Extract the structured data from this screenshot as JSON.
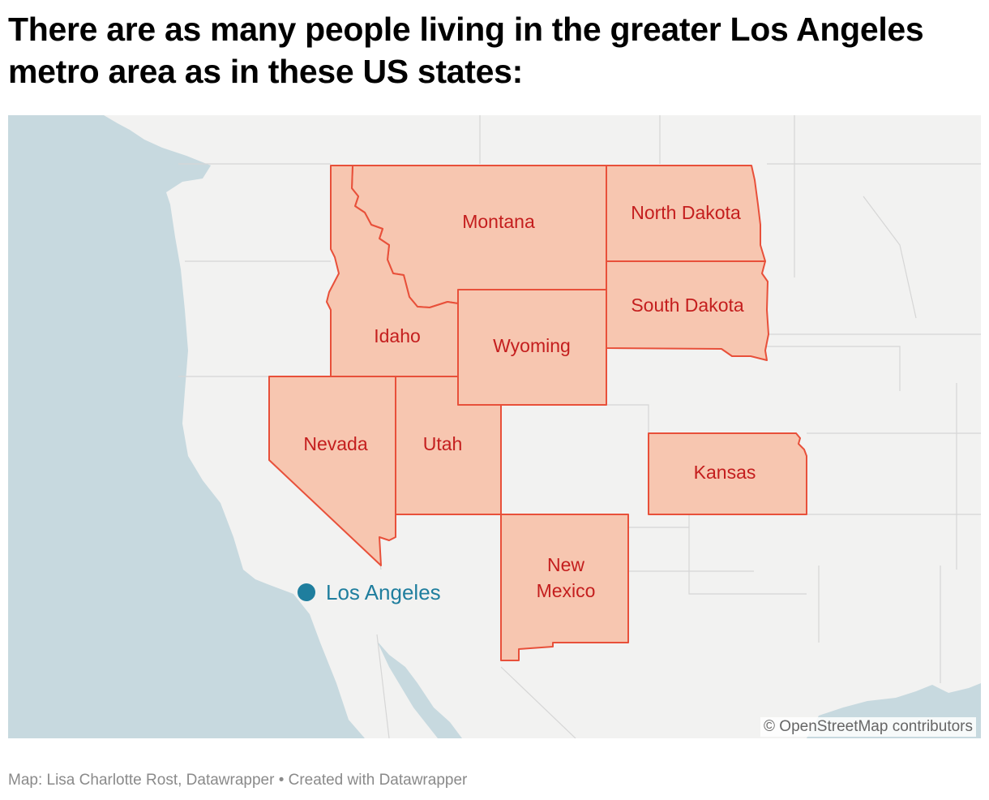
{
  "title": "There are as many people living in the greater Los Angeles metro area as in these US states:",
  "states": [
    {
      "name": "Montana"
    },
    {
      "name": "North Dakota"
    },
    {
      "name": "South Dakota"
    },
    {
      "name": "Idaho"
    },
    {
      "name": "Wyoming"
    },
    {
      "name": "Nevada"
    },
    {
      "name": "Utah"
    },
    {
      "name": "Kansas"
    },
    {
      "name_line1": "New",
      "name_line2": "Mexico"
    }
  ],
  "city": {
    "name": "Los Angeles",
    "color": "#1f7e9e"
  },
  "colors": {
    "highlight_fill": "#f7c6b0",
    "highlight_stroke": "#e8503a",
    "label": "#c41e1e",
    "water": "#c7d9df",
    "land": "#f2f2f1"
  },
  "attribution": "© OpenStreetMap contributors",
  "footer": "Map: Lisa Charlotte Rost, Datawrapper • Created with Datawrapper"
}
